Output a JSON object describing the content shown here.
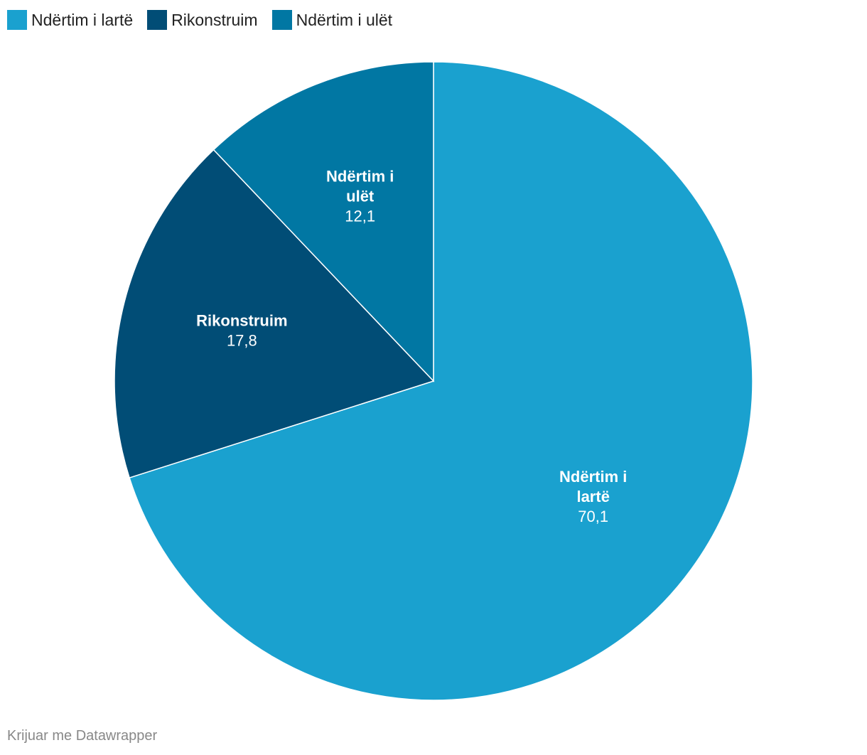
{
  "legend": {
    "items": [
      {
        "label": "Ndërtim i lartë",
        "color": "#1aa1cf"
      },
      {
        "label": "Rikonstruim",
        "color": "#014d76"
      },
      {
        "label": "Ndërtim i ulët",
        "color": "#0177a3"
      }
    ]
  },
  "chart_data": {
    "type": "pie",
    "title": "",
    "slices": [
      {
        "label_lines": [
          "Ndërtim i",
          "lartë"
        ],
        "value": 70.1,
        "value_text": "70,1",
        "color": "#1aa1cf"
      },
      {
        "label_lines": [
          "Rikonstruim"
        ],
        "value": 17.8,
        "value_text": "17,8",
        "color": "#014d76"
      },
      {
        "label_lines": [
          "Ndërtim i",
          "ulët"
        ],
        "value": 12.1,
        "value_text": "12,1",
        "color": "#0177a3"
      }
    ]
  },
  "footer": {
    "credit": "Krijuar me Datawrapper"
  }
}
